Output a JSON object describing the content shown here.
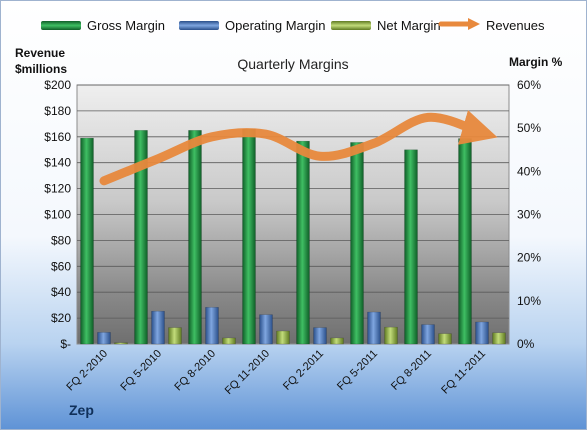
{
  "header": {
    "footer": "Zep"
  },
  "chart_data": {
    "type": "bar",
    "title": "Quarterly Margins",
    "ylabel": "Revenue\n$millions",
    "y2label": "Margin %",
    "categories": [
      "FQ 2-2010",
      "FQ 5-2010",
      "FQ 8-2010",
      "FQ 11-2010",
      "FQ 2-2011",
      "FQ 5-2011",
      "FQ 8-2011",
      "FQ 11-2011"
    ],
    "ylim": [
      0,
      200
    ],
    "y2lim": [
      0,
      60
    ],
    "yticks": [
      "$-",
      "$20",
      "$40",
      "$60",
      "$80",
      "$100",
      "$120",
      "$140",
      "$160",
      "$180",
      "$200"
    ],
    "y2ticks": [
      "0%",
      "10%",
      "20%",
      "30%",
      "40%",
      "50%",
      "60%"
    ],
    "series": [
      {
        "name": "Gross Margin",
        "axis": "right",
        "color": "#1f8a3c",
        "values": [
          47.7,
          49.5,
          49.5,
          49.8,
          47.0,
          46.7,
          45.0,
          47.6
        ]
      },
      {
        "name": "Operating Margin",
        "axis": "right",
        "color": "#4f7bc0",
        "values": [
          2.7,
          7.6,
          8.5,
          6.8,
          3.8,
          7.4,
          4.5,
          5.1
        ]
      },
      {
        "name": "Net Margin",
        "axis": "right",
        "color": "#93b04a",
        "values": [
          0.3,
          3.8,
          1.4,
          3.0,
          1.4,
          3.9,
          2.4,
          2.6
        ]
      },
      {
        "name": "Revenues",
        "axis": "left",
        "type": "line",
        "color": "#e8893d",
        "values": [
          126,
          143,
          160,
          162,
          145,
          155,
          175,
          163
        ]
      }
    ],
    "legend": "top",
    "grid": true
  }
}
